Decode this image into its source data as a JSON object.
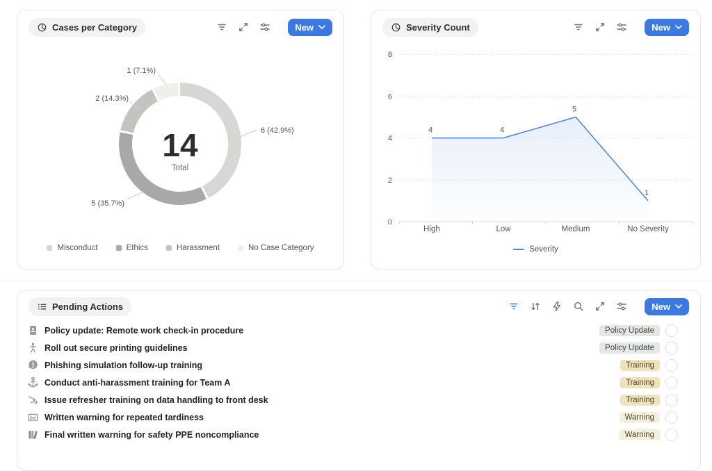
{
  "accent_blue": "#3b79e0",
  "cases_card": {
    "title": "Cases per Category",
    "new_label": "New",
    "chart_data": {
      "type": "donut",
      "title": "Cases per Category",
      "total": "14",
      "total_label": "Total",
      "segments": [
        {
          "label": "Misconduct",
          "value": 6,
          "percent": 42.9,
          "callout": "6 (42.9%)",
          "color": "#d7d7d5"
        },
        {
          "label": "Ethics",
          "value": 5,
          "percent": 35.7,
          "callout": "5 (35.7%)",
          "color": "#a8a8a6"
        },
        {
          "label": "Harassment",
          "value": 2,
          "percent": 14.3,
          "callout": "2 (14.3%)",
          "color": "#c3c3c0"
        },
        {
          "label": "No Case Category",
          "value": 1,
          "percent": 7.1,
          "callout": "1 (7.1%)",
          "color": "#efefec"
        }
      ]
    }
  },
  "severity_card": {
    "title": "Severity Count",
    "new_label": "New",
    "chart_data": {
      "type": "line",
      "title": "Severity Count",
      "categories": [
        "High",
        "Low",
        "Medium",
        "No Severity"
      ],
      "values": [
        4,
        4,
        5,
        1
      ],
      "y_ticks": [
        "0",
        "2",
        "4",
        "6",
        "8"
      ],
      "ylim": [
        0,
        8
      ],
      "grid": "dotted horizontal",
      "legend_position": "bottom",
      "series_name": "Severity",
      "line_color": "#4a82de"
    }
  },
  "pending_card": {
    "title": "Pending Actions",
    "new_label": "New",
    "rows": [
      {
        "icon": "notebook-icon",
        "text": "Policy update: Remote work check-in procedure",
        "tag": "Policy Update",
        "tag_type": "policy"
      },
      {
        "icon": "person-icon",
        "text": "Roll out secure printing guidelines",
        "tag": "Policy Update",
        "tag_type": "policy"
      },
      {
        "icon": "speech-exclamation-icon",
        "text": "Phishing simulation follow-up training",
        "tag": "Training",
        "tag_type": "training"
      },
      {
        "icon": "anchor-icon",
        "text": "Conduct anti-harassment training for Team A",
        "tag": "Training",
        "tag_type": "training"
      },
      {
        "icon": "shuffle-arrows-icon",
        "text": "Issue refresher training on data handling to front desk",
        "tag": "Training",
        "tag_type": "training"
      },
      {
        "icon": "picture-frame-icon",
        "text": "Written warning for repeated tardiness",
        "tag": "Warning",
        "tag_type": "warning"
      },
      {
        "icon": "books-icon",
        "text": "Final written warning for safety PPE noncompliance",
        "tag": "Warning",
        "tag_type": "warning"
      }
    ],
    "tag_styles": {
      "policy": {
        "bg": "#e4e7e4",
        "fg": "#3f4542"
      },
      "training": {
        "bg": "#f0e2ba",
        "fg": "#4f4734"
      },
      "warning": {
        "bg": "#f5f0dd",
        "fg": "#4f4734"
      }
    }
  }
}
